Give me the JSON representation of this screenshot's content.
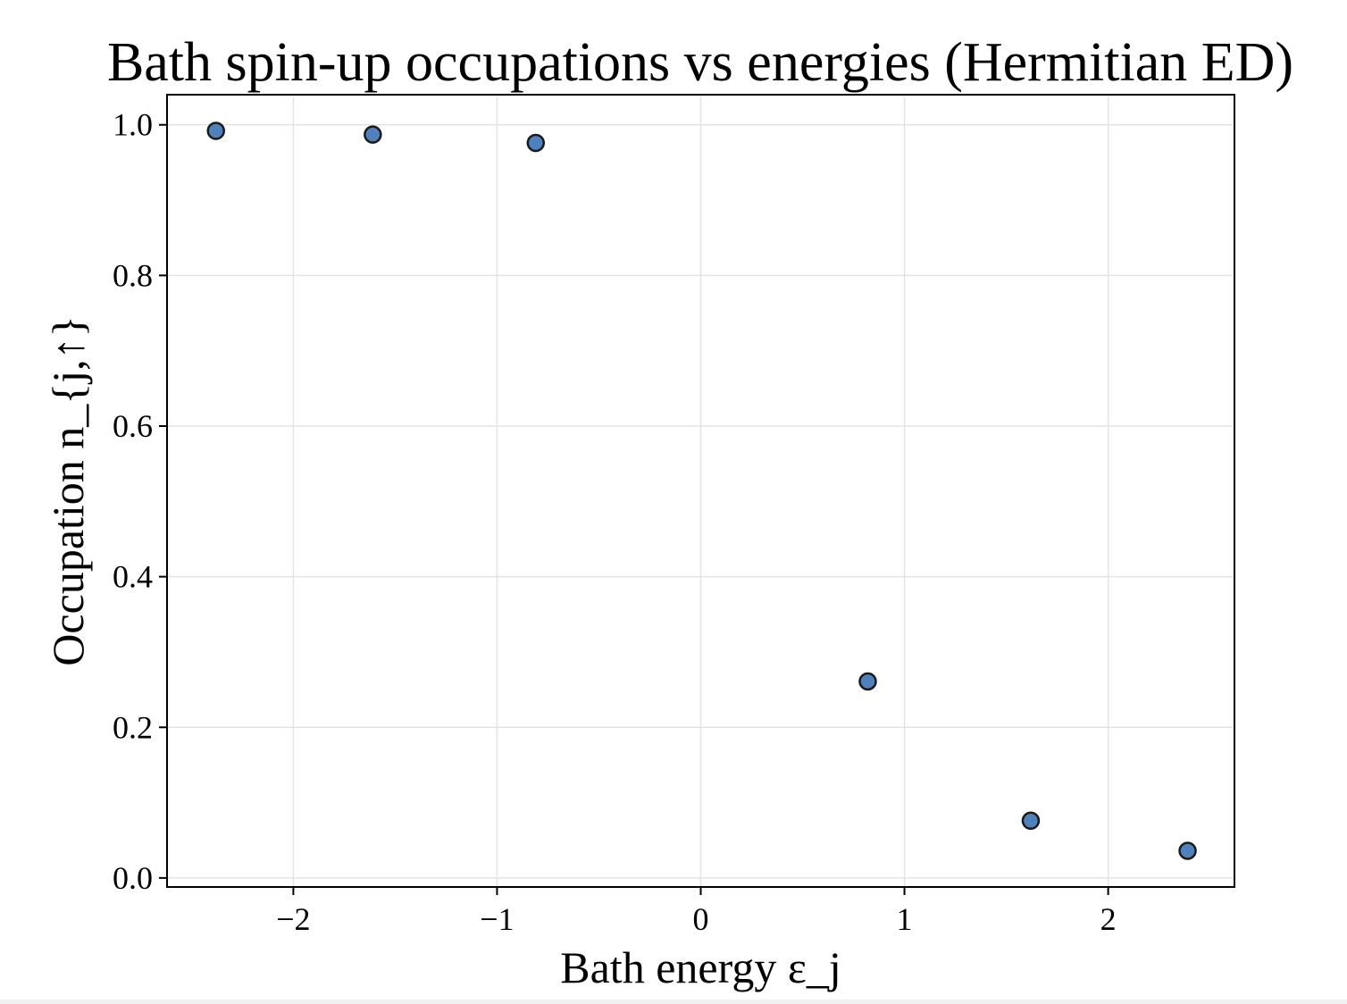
{
  "chart_data": {
    "type": "scatter",
    "title": "Bath spin-up occupations vs energies (Hermitian ED)",
    "xlabel": "Bath energy ε_j",
    "ylabel": "Occupation n_{j,↑}",
    "xlim": [
      -2.62,
      2.62
    ],
    "ylim": [
      -0.012,
      1.04
    ],
    "x_ticks": [
      -2,
      -1,
      0,
      1,
      2
    ],
    "x_tick_labels": [
      "−2",
      "−1",
      "0",
      "1",
      "2"
    ],
    "y_ticks": [
      0.0,
      0.2,
      0.4,
      0.6,
      0.8,
      1.0
    ],
    "y_tick_labels": [
      "0.0",
      "0.2",
      "0.4",
      "0.6",
      "0.8",
      "1.0"
    ],
    "grid": true,
    "series": [
      {
        "x": [
          -2.38,
          -1.61,
          -0.81,
          0.82,
          1.62,
          2.39
        ],
        "y": [
          0.992,
          0.987,
          0.976,
          0.261,
          0.076,
          0.036
        ]
      }
    ],
    "colors": {
      "marker_fill": "#4f81bd",
      "marker_edge": "#1a1a1a",
      "grid": "#e3e3e3",
      "axes": "#000000"
    }
  }
}
